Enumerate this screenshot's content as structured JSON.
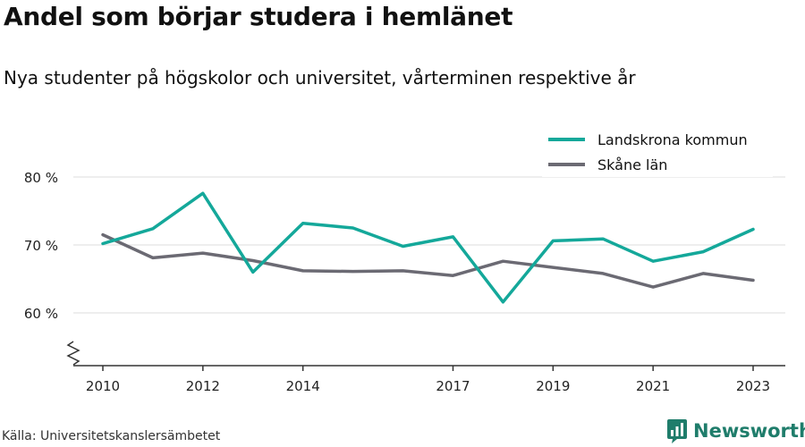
{
  "title": "Andel som börjar studera i hemlänet",
  "subtitle": "Nya studenter på högskolor och universitet, vårterminen respektive år",
  "source": "Källa: Universitetskanslersämbetet",
  "brand": "Newsworthy",
  "colors": {
    "landskrona": "#14a89a",
    "skane": "#6b6a73",
    "grid": "#dcdcdc",
    "axis": "#333333",
    "brand": "#1f7d6b"
  },
  "chart_data": {
    "type": "line",
    "title": "Andel som börjar studera i hemlänet",
    "subtitle": "Nya studenter på högskolor och universitet, vårterminen respektive år",
    "xlabel": "",
    "ylabel": "",
    "x": [
      2010,
      2011,
      2012,
      2013,
      2014,
      2015,
      2016,
      2017,
      2018,
      2019,
      2020,
      2021,
      2022,
      2023
    ],
    "x_ticks": [
      "2010",
      "2012",
      "2014",
      "2017",
      "2019",
      "2021",
      "2023"
    ],
    "y_ticks": [
      "60 %",
      "70 %",
      "80 %"
    ],
    "y_tick_values": [
      60,
      70,
      80
    ],
    "ylim": [
      52.5,
      82.5
    ],
    "axis_break": true,
    "grid": true,
    "legend_position": "top-right",
    "series": [
      {
        "name": "Landskrona kommun",
        "color": "#14a89a",
        "values": [
          70.2,
          72.4,
          77.6,
          66.0,
          73.2,
          72.5,
          69.8,
          71.2,
          61.6,
          70.6,
          70.9,
          67.6,
          69.0,
          72.3
        ]
      },
      {
        "name": "Skåne län",
        "color": "#6b6a73",
        "values": [
          71.5,
          68.1,
          68.8,
          67.7,
          66.2,
          66.1,
          66.2,
          65.5,
          67.6,
          66.7,
          65.8,
          63.8,
          65.8,
          64.8
        ]
      }
    ]
  }
}
